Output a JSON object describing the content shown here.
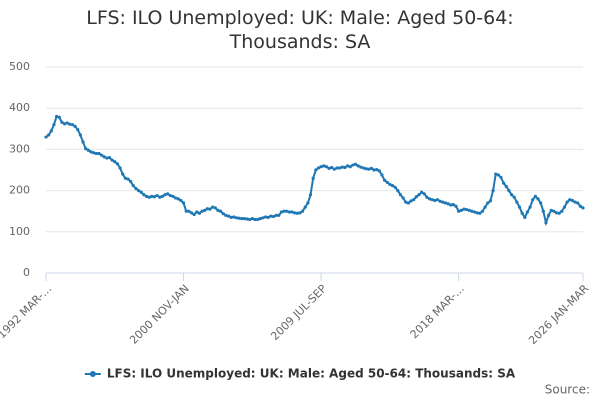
{
  "chart_data": {
    "type": "line",
    "title": "LFS: ILO Unemployed: UK: Male: Aged 50-64: Thousands: SA",
    "source": "Source:",
    "categories": [
      "1992 MAR-MAY",
      null,
      null,
      null,
      null,
      null,
      null,
      null,
      null,
      null,
      null,
      null,
      null,
      null,
      null,
      null,
      null,
      null,
      null,
      null,
      null,
      null,
      null,
      null,
      null,
      null,
      null,
      null,
      null,
      null,
      null,
      null,
      null,
      null,
      null,
      null,
      null,
      null,
      null,
      null,
      null,
      null,
      null,
      null,
      null,
      null,
      null,
      null,
      null,
      null,
      null,
      null,
      "2000 NOV-JAN",
      null,
      null,
      null,
      null,
      null,
      null,
      null,
      null,
      null,
      null,
      null,
      null,
      null,
      null,
      null,
      null,
      null,
      null,
      null,
      null,
      null,
      null,
      null,
      null,
      null,
      null,
      null,
      null,
      null,
      null,
      null,
      null,
      null,
      null,
      null,
      null,
      null,
      null,
      null,
      null,
      null,
      null,
      null,
      null,
      null,
      null,
      null,
      null,
      null,
      null,
      null,
      "2009 JUL-SEP",
      null,
      null,
      null,
      null,
      null,
      null,
      null,
      null,
      null,
      null,
      null,
      null,
      null,
      null,
      null,
      null,
      null,
      null,
      null,
      null,
      null,
      null,
      null,
      null,
      null,
      null,
      null,
      null,
      null,
      null,
      null,
      null,
      null,
      null,
      null,
      null,
      null,
      null,
      null,
      null,
      null,
      null,
      null,
      null,
      null,
      null,
      null,
      null,
      null,
      null,
      null,
      "2018 MAR-MAY",
      null,
      null,
      null,
      null,
      null,
      null,
      null,
      null,
      null,
      null,
      null,
      null,
      null,
      null,
      null,
      null,
      null,
      null,
      null,
      null,
      null,
      null,
      null,
      null,
      null,
      null,
      null,
      null,
      null,
      null,
      null,
      null,
      null,
      null,
      null,
      null,
      null,
      null,
      null,
      null,
      null,
      null,
      null,
      null,
      null,
      null,
      "2026 JAN-MAR"
    ],
    "series": [
      {
        "name": "LFS: ILO Unemployed: UK: Male: Aged 50-64: Thousands: SA",
        "color": "#1f78b4",
        "values": [
          330,
          335,
          345,
          360,
          380,
          378,
          366,
          362,
          364,
          361,
          360,
          356,
          348,
          335,
          318,
          302,
          298,
          294,
          292,
          290,
          290,
          286,
          282,
          279,
          280,
          274,
          270,
          265,
          255,
          240,
          230,
          228,
          222,
          212,
          205,
          200,
          196,
          190,
          186,
          184,
          186,
          185,
          188,
          184,
          186,
          190,
          192,
          188,
          186,
          182,
          180,
          176,
          170,
          150,
          150,
          146,
          142,
          148,
          145,
          150,
          152,
          156,
          155,
          160,
          158,
          152,
          150,
          144,
          140,
          138,
          135,
          136,
          134,
          133,
          132,
          132,
          131,
          130,
          132,
          130,
          130,
          132,
          134,
          136,
          135,
          138,
          137,
          140,
          140,
          148,
          150,
          150,
          148,
          148,
          146,
          145,
          146,
          150,
          160,
          170,
          190,
          230,
          250,
          255,
          258,
          260,
          258,
          254,
          256,
          252,
          255,
          255,
          257,
          256,
          260,
          258,
          262,
          264,
          260,
          257,
          255,
          253,
          252,
          254,
          250,
          251,
          248,
          238,
          225,
          220,
          215,
          212,
          208,
          200,
          190,
          182,
          172,
          170,
          175,
          178,
          185,
          190,
          196,
          192,
          184,
          180,
          178,
          176,
          178,
          174,
          172,
          170,
          168,
          165,
          166,
          162,
          150,
          152,
          155,
          154,
          152,
          150,
          148,
          146,
          145,
          150,
          160,
          170,
          175,
          200,
          240,
          238,
          232,
          218,
          210,
          200,
          190,
          184,
          172,
          160,
          145,
          135,
          148,
          160,
          178,
          186,
          180,
          170,
          150,
          122,
          140,
          152,
          150,
          146,
          145,
          150,
          160,
          172,
          178,
          176,
          172,
          170,
          162,
          158
        ]
      }
    ],
    "ylim": [
      0,
      500
    ],
    "yticks": [
      0,
      100,
      200,
      300,
      400,
      500
    ],
    "grid": true,
    "legend": "bottom"
  }
}
